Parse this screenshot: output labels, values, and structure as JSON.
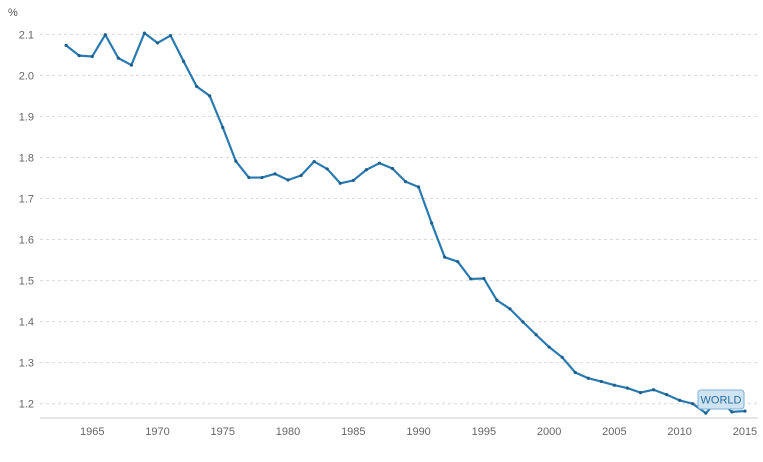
{
  "chart_data": {
    "type": "line",
    "title": "",
    "xlabel": "",
    "ylabel": "%",
    "unit_label": "%",
    "xlim": [
      1961,
      2016
    ],
    "ylim": [
      1.17,
      2.13
    ],
    "grid": true,
    "x_ticks": [
      1965,
      1970,
      1975,
      1980,
      1985,
      1990,
      1995,
      2000,
      2005,
      2010,
      2015
    ],
    "y_ticks": [
      1.2,
      1.3,
      1.4,
      1.5,
      1.6,
      1.7,
      1.8,
      1.9,
      2.0,
      2.1
    ],
    "y_tick_labels": [
      "1.2",
      "1.3",
      "1.4",
      "1.5",
      "1.6",
      "1.7",
      "1.8",
      "1.9",
      "2.0",
      "2.1"
    ],
    "series": [
      {
        "name": "WORLD",
        "color": "#2a7ab0",
        "x": [
          1963,
          1964,
          1965,
          1966,
          1967,
          1968,
          1969,
          1970,
          1971,
          1972,
          1973,
          1974,
          1975,
          1976,
          1977,
          1978,
          1979,
          1980,
          1981,
          1982,
          1983,
          1984,
          1985,
          1986,
          1987,
          1988,
          1989,
          1990,
          1991,
          1992,
          1993,
          1994,
          1995,
          1996,
          1997,
          1998,
          1999,
          2000,
          2001,
          2002,
          2003,
          2004,
          2005,
          2006,
          2007,
          2008,
          2009,
          2010,
          2011,
          2012,
          2013,
          2014,
          2015
        ],
        "values": [
          2.073,
          2.048,
          2.046,
          2.099,
          2.042,
          2.025,
          2.103,
          2.079,
          2.097,
          2.034,
          1.973,
          1.95,
          1.873,
          1.791,
          1.751,
          1.751,
          1.76,
          1.745,
          1.756,
          1.79,
          1.772,
          1.737,
          1.744,
          1.77,
          1.786,
          1.773,
          1.741,
          1.728,
          1.64,
          1.557,
          1.546,
          1.504,
          1.505,
          1.452,
          1.431,
          1.399,
          1.368,
          1.338,
          1.313,
          1.276,
          1.262,
          1.254,
          1.245,
          1.238,
          1.227,
          1.234,
          1.222,
          1.208,
          1.2,
          1.177,
          1.21,
          1.18,
          1.182
        ]
      }
    ]
  }
}
